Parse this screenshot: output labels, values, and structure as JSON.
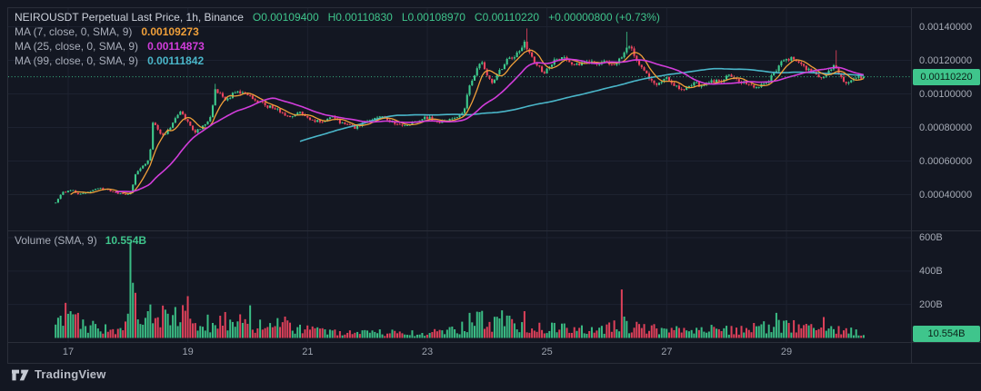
{
  "header": {
    "title": "NEIROUSDT Perpetual Last Price, 1h, Binance",
    "ohlc": {
      "o": "O0.00109400",
      "h": "H0.00110830",
      "l": "L0.00108970",
      "c": "C0.00110220",
      "change": "+0.00000800 (+0.73%)"
    },
    "ma_rows": [
      {
        "label": "MA (7, close, 0, SMA, 9)",
        "value": "0.00109273"
      },
      {
        "label": "MA (25, close, 0, SMA, 9)",
        "value": "0.00114873"
      },
      {
        "label": "MA (99, close, 0, SMA, 9)",
        "value": "0.00111842"
      }
    ]
  },
  "volume_pane": {
    "label": "Volume (SMA, 9)",
    "value": "10.554B"
  },
  "axes": {
    "price_ticks": [
      {
        "text": "0.00140000",
        "value": 0.0014
      },
      {
        "text": "0.00120000",
        "value": 0.0012
      },
      {
        "text": "0.00100000",
        "value": 0.001
      },
      {
        "text": "0.00080000",
        "value": 0.0008
      },
      {
        "text": "0.00060000",
        "value": 0.0006
      },
      {
        "text": "0.00040000",
        "value": 0.0004
      }
    ],
    "volume_ticks": [
      {
        "text": "600B",
        "value": 600
      },
      {
        "text": "400B",
        "value": 400
      },
      {
        "text": "200B",
        "value": 200
      }
    ],
    "time_ticks": [
      {
        "text": "17",
        "day": 17
      },
      {
        "text": "19",
        "day": 19
      },
      {
        "text": "21",
        "day": 21
      },
      {
        "text": "23",
        "day": 23
      },
      {
        "text": "25",
        "day": 25
      },
      {
        "text": "27",
        "day": 27
      },
      {
        "text": "29",
        "day": 29
      }
    ],
    "last_price_label": "0.00110220",
    "last_volume_label": "10.554B"
  },
  "branding": {
    "logo_text": "TradingView"
  },
  "colors": {
    "background": "#131722",
    "pane_border": "#2a2e39",
    "grid": "#1d2230",
    "up": "#3ecb8d",
    "down": "#f0455f",
    "accent_green": "#3fc58c",
    "badge_text": "#0b1f17",
    "ma7": "#f0a03a",
    "ma25": "#d23ddb",
    "ma99": "#4ab6c9",
    "title_text": "#ccd1db",
    "label_text": "#a8adb9",
    "axis_text": "#a6abb6"
  },
  "chart_data": {
    "type": "candlestick",
    "symbol": "NEIROUSDT Perpetual",
    "interval": "1h",
    "exchange": "Binance",
    "price_scale": "last price",
    "last": {
      "open": 0.001094,
      "high": 0.0011083,
      "low": 0.0010897,
      "close": 0.0011022,
      "change": 8e-06,
      "change_pct": 0.73
    },
    "ma": [
      {
        "window": 7,
        "source": "close",
        "type": "SMA",
        "value": 0.00109273
      },
      {
        "window": 25,
        "source": "close",
        "type": "SMA",
        "value": 0.00114873
      },
      {
        "window": 99,
        "source": "close",
        "type": "SMA",
        "value": 0.00111842
      }
    ],
    "volume_sma": {
      "window": 9,
      "value_b": 10.554
    },
    "time_range_days": [
      16.79,
      30.29
    ],
    "price_axis_range": [
      0.0003,
      0.00146
    ],
    "volume_axis_max_b": 660,
    "close_anchors": [
      [
        16.79,
        0.00035
      ],
      [
        16.9,
        0.00041
      ],
      [
        17.05,
        0.00043
      ],
      [
        17.2,
        0.0004
      ],
      [
        17.35,
        0.00042
      ],
      [
        17.5,
        0.00044
      ],
      [
        17.65,
        0.00043
      ],
      [
        17.8,
        0.00041
      ],
      [
        17.95,
        0.0004
      ],
      [
        18.05,
        0.00041
      ],
      [
        18.12,
        0.00052
      ],
      [
        18.2,
        0.00056
      ],
      [
        18.3,
        0.00058
      ],
      [
        18.36,
        0.00062
      ],
      [
        18.42,
        0.00084
      ],
      [
        18.5,
        0.00078
      ],
      [
        18.6,
        0.00075
      ],
      [
        18.75,
        0.00083
      ],
      [
        18.88,
        0.00089
      ],
      [
        19.0,
        0.00084
      ],
      [
        19.12,
        0.00077
      ],
      [
        19.25,
        0.00081
      ],
      [
        19.38,
        0.00086
      ],
      [
        19.45,
        0.00102
      ],
      [
        19.55,
        0.001
      ],
      [
        19.65,
        0.00096
      ],
      [
        19.8,
        0.00102
      ],
      [
        19.95,
        0.001
      ],
      [
        20.1,
        0.00097
      ],
      [
        20.3,
        0.00093
      ],
      [
        20.5,
        0.00091
      ],
      [
        20.65,
        0.00086
      ],
      [
        20.85,
        0.00089
      ],
      [
        21.0,
        0.00086
      ],
      [
        21.2,
        0.00083
      ],
      [
        21.4,
        0.00086
      ],
      [
        21.6,
        0.00082
      ],
      [
        21.8,
        0.0008
      ],
      [
        22.0,
        0.00084
      ],
      [
        22.2,
        0.00087
      ],
      [
        22.4,
        0.00083
      ],
      [
        22.6,
        0.0008
      ],
      [
        22.8,
        0.00084
      ],
      [
        23.0,
        0.00086
      ],
      [
        23.2,
        0.00083
      ],
      [
        23.35,
        0.00085
      ],
      [
        23.5,
        0.00086
      ],
      [
        23.6,
        0.00088
      ],
      [
        23.7,
        0.00104
      ],
      [
        23.8,
        0.00113
      ],
      [
        23.9,
        0.00119
      ],
      [
        24.0,
        0.00112
      ],
      [
        24.1,
        0.00106
      ],
      [
        24.2,
        0.00113
      ],
      [
        24.35,
        0.00121
      ],
      [
        24.5,
        0.00124
      ],
      [
        24.62,
        0.0013
      ],
      [
        24.7,
        0.00126
      ],
      [
        24.8,
        0.00118
      ],
      [
        24.95,
        0.00113
      ],
      [
        25.1,
        0.00119
      ],
      [
        25.25,
        0.00122
      ],
      [
        25.4,
        0.00119
      ],
      [
        25.55,
        0.00117
      ],
      [
        25.7,
        0.0012
      ],
      [
        25.85,
        0.00118
      ],
      [
        26.0,
        0.00119
      ],
      [
        26.15,
        0.00117
      ],
      [
        26.28,
        0.00125
      ],
      [
        26.36,
        0.0013
      ],
      [
        26.5,
        0.0012
      ],
      [
        26.65,
        0.00112
      ],
      [
        26.8,
        0.00106
      ],
      [
        27.0,
        0.00109
      ],
      [
        27.15,
        0.00104
      ],
      [
        27.3,
        0.00103
      ],
      [
        27.45,
        0.00107
      ],
      [
        27.6,
        0.00104
      ],
      [
        27.75,
        0.00108
      ],
      [
        27.9,
        0.00107
      ],
      [
        28.05,
        0.00111
      ],
      [
        28.2,
        0.00108
      ],
      [
        28.35,
        0.00106
      ],
      [
        28.5,
        0.00104
      ],
      [
        28.65,
        0.00106
      ],
      [
        28.8,
        0.00113
      ],
      [
        28.95,
        0.0012
      ],
      [
        29.1,
        0.00122
      ],
      [
        29.2,
        0.00118
      ],
      [
        29.35,
        0.00115
      ],
      [
        29.5,
        0.00111
      ],
      [
        29.6,
        0.00109
      ],
      [
        29.72,
        0.00114
      ],
      [
        29.82,
        0.00117
      ],
      [
        29.9,
        0.0011
      ],
      [
        30.0,
        0.00107
      ],
      [
        30.1,
        0.00109
      ],
      [
        30.28,
        0.0011022
      ]
    ],
    "wick_events": [
      [
        19.45,
        0.00106
      ],
      [
        24.66,
        0.00139
      ],
      [
        26.33,
        0.00137
      ],
      [
        29.84,
        0.00126
      ]
    ],
    "volume_anchors": [
      [
        16.79,
        70
      ],
      [
        17.0,
        120
      ],
      [
        17.2,
        100
      ],
      [
        17.5,
        70
      ],
      [
        17.8,
        50
      ],
      [
        18.0,
        120
      ],
      [
        18.1,
        180
      ],
      [
        18.3,
        130
      ],
      [
        18.6,
        120
      ],
      [
        18.9,
        130
      ],
      [
        19.1,
        110
      ],
      [
        19.4,
        90
      ],
      [
        19.7,
        80
      ],
      [
        20.0,
        90
      ],
      [
        20.3,
        60
      ],
      [
        20.6,
        80
      ],
      [
        20.9,
        50
      ],
      [
        21.3,
        35
      ],
      [
        21.8,
        30
      ],
      [
        22.3,
        32
      ],
      [
        22.8,
        30
      ],
      [
        23.3,
        35
      ],
      [
        23.55,
        60
      ],
      [
        23.75,
        110
      ],
      [
        24.0,
        95
      ],
      [
        24.3,
        85
      ],
      [
        24.6,
        90
      ],
      [
        24.9,
        65
      ],
      [
        25.2,
        55
      ],
      [
        25.6,
        50
      ],
      [
        26.0,
        55
      ],
      [
        26.3,
        80
      ],
      [
        26.6,
        60
      ],
      [
        27.0,
        45
      ],
      [
        27.4,
        40
      ],
      [
        27.8,
        50
      ],
      [
        28.2,
        45
      ],
      [
        28.6,
        60
      ],
      [
        28.9,
        80
      ],
      [
        29.2,
        60
      ],
      [
        29.6,
        55
      ],
      [
        29.9,
        60
      ],
      [
        30.28,
        30
      ]
    ],
    "volume_events": [
      [
        16.94,
        210,
        "down"
      ],
      [
        17.02,
        160,
        "up"
      ],
      [
        18.03,
        575,
        "up"
      ],
      [
        18.07,
        330,
        "up"
      ],
      [
        18.12,
        270,
        "down"
      ],
      [
        18.38,
        200,
        "up"
      ],
      [
        18.81,
        185,
        "up"
      ],
      [
        18.99,
        250,
        "down"
      ],
      [
        19.63,
        155,
        "down"
      ],
      [
        20.02,
        195,
        "up"
      ],
      [
        23.7,
        150,
        "up"
      ],
      [
        24.25,
        165,
        "up"
      ],
      [
        24.64,
        160,
        "down"
      ],
      [
        26.25,
        290,
        "down"
      ],
      [
        28.85,
        150,
        "up"
      ],
      [
        29.64,
        125,
        "down"
      ]
    ]
  }
}
